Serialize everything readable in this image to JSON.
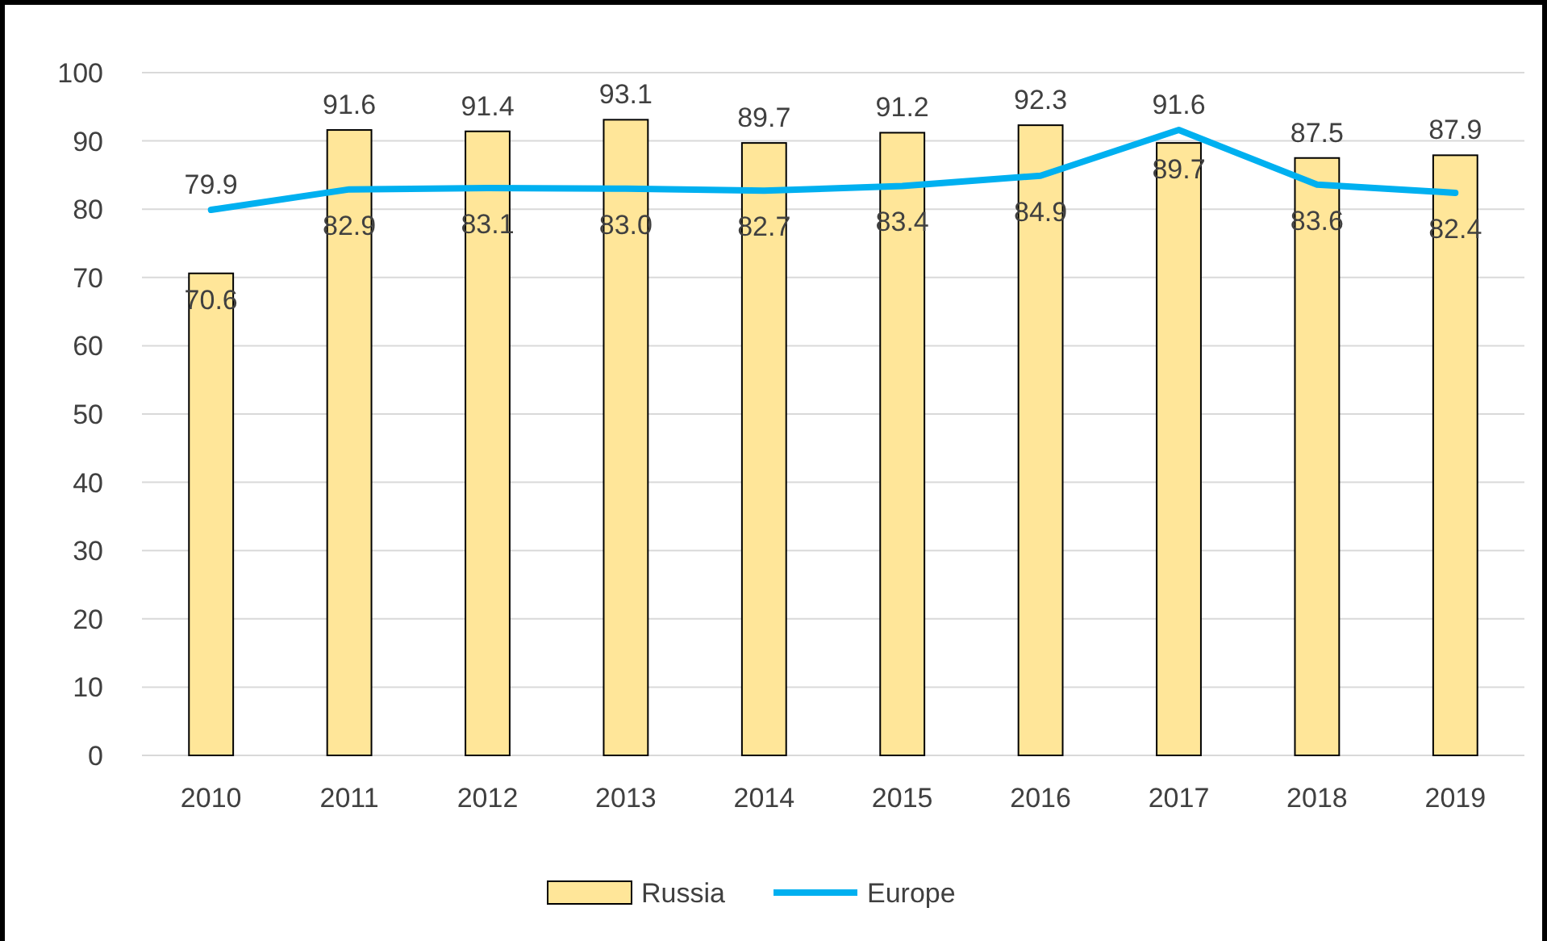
{
  "chart_data": {
    "type": "bar",
    "categories": [
      "2010",
      "2011",
      "2012",
      "2013",
      "2014",
      "2015",
      "2016",
      "2017",
      "2018",
      "2019"
    ],
    "series": [
      {
        "name": "Russia",
        "color": "#ffe699",
        "values": [
          70.6,
          91.6,
          91.4,
          93.1,
          89.7,
          91.2,
          92.3,
          89.7,
          87.5,
          87.9
        ],
        "value_labels": [
          "70.6",
          "91.6",
          "91.4",
          "93.1",
          "89.7",
          "91.2",
          "92.3",
          "89.7",
          "87.5",
          "87.9"
        ]
      },
      {
        "name": "Europe",
        "type": "line",
        "color": "#00b0f0",
        "values": [
          79.9,
          82.9,
          83.1,
          83.0,
          82.7,
          83.4,
          84.9,
          91.6,
          83.6,
          82.4
        ],
        "value_labels": [
          "79.9",
          "82.9",
          "83.1",
          "83.0",
          "82.7",
          "83.4",
          "84.9",
          "91.6",
          "83.6",
          "82.4"
        ]
      }
    ],
    "ylim": [
      0,
      100
    ],
    "yticks": [
      0,
      10,
      20,
      30,
      40,
      50,
      60,
      70,
      80,
      90,
      100
    ],
    "grid": "y",
    "legend": "bottom",
    "marker": "none"
  }
}
